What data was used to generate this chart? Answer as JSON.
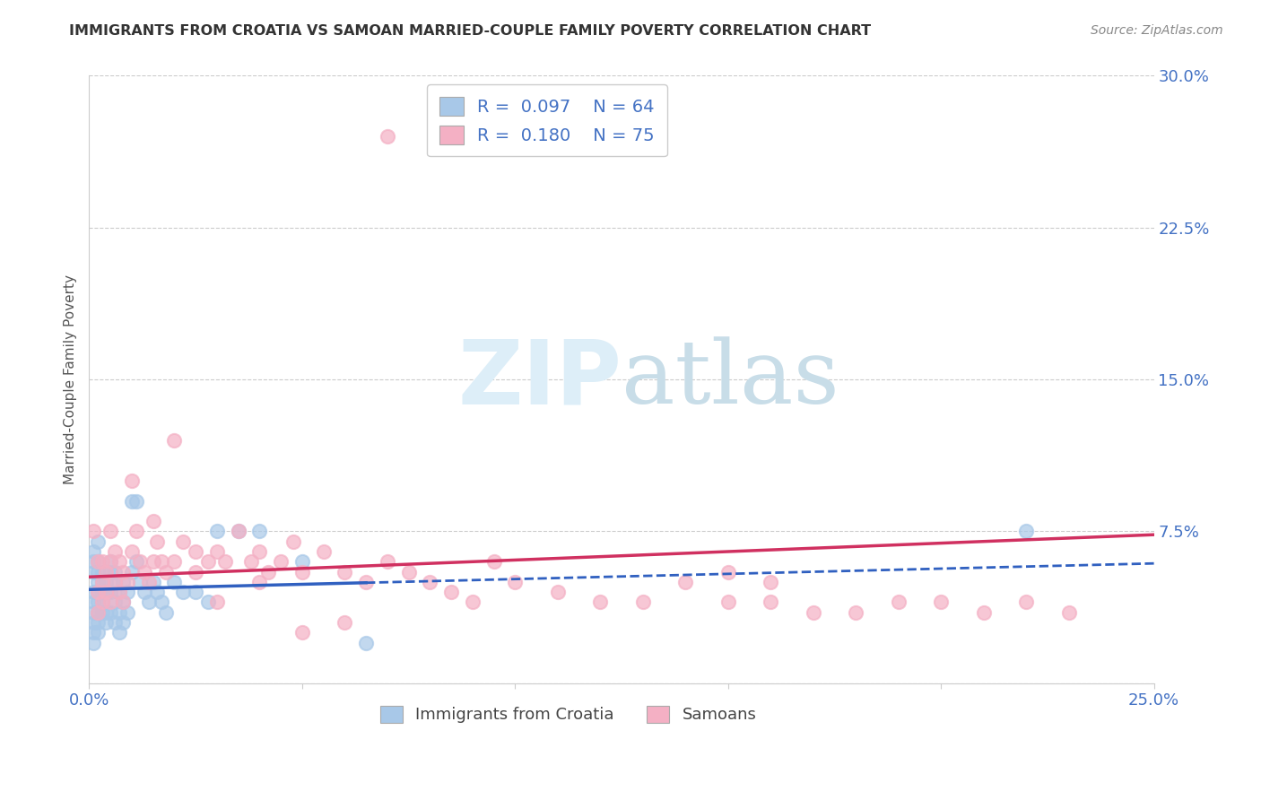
{
  "title": "IMMIGRANTS FROM CROATIA VS SAMOAN MARRIED-COUPLE FAMILY POVERTY CORRELATION CHART",
  "source": "Source: ZipAtlas.com",
  "ylabel": "Married-Couple Family Poverty",
  "xlim": [
    0.0,
    0.25
  ],
  "ylim": [
    0.0,
    0.3
  ],
  "ytick_vals": [
    0.0,
    0.075,
    0.15,
    0.225,
    0.3
  ],
  "ytick_labels_right": [
    "",
    "7.5%",
    "15.0%",
    "22.5%",
    "30.0%"
  ],
  "xtick_vals": [
    0.0,
    0.05,
    0.1,
    0.15,
    0.2,
    0.25
  ],
  "xtick_labels": [
    "0.0%",
    "",
    "",
    "",
    "",
    "25.0%"
  ],
  "croatia_R": 0.097,
  "croatia_N": 64,
  "samoan_R": 0.18,
  "samoan_N": 75,
  "croatia_scatter_color": "#a8c8e8",
  "croatia_line_color": "#3060c0",
  "samoan_scatter_color": "#f4b0c4",
  "samoan_line_color": "#d03060",
  "watermark_color": "#ddeef8",
  "bg_color": "#ffffff",
  "grid_color": "#cccccc",
  "right_axis_color": "#4472c4",
  "bottom_axis_color": "#4472c4",
  "title_color": "#333333",
  "source_color": "#888888",
  "legend_text_color": "#4472c4",
  "croatia_x": [
    0.001,
    0.001,
    0.001,
    0.001,
    0.001,
    0.001,
    0.001,
    0.001,
    0.001,
    0.002,
    0.002,
    0.002,
    0.002,
    0.002,
    0.002,
    0.002,
    0.002,
    0.002,
    0.003,
    0.003,
    0.003,
    0.003,
    0.003,
    0.004,
    0.004,
    0.004,
    0.004,
    0.005,
    0.005,
    0.005,
    0.005,
    0.006,
    0.006,
    0.006,
    0.006,
    0.007,
    0.007,
    0.007,
    0.008,
    0.008,
    0.008,
    0.009,
    0.009,
    0.01,
    0.01,
    0.011,
    0.011,
    0.012,
    0.013,
    0.014,
    0.015,
    0.016,
    0.017,
    0.018,
    0.02,
    0.022,
    0.025,
    0.028,
    0.03,
    0.035,
    0.04,
    0.05,
    0.065,
    0.22
  ],
  "croatia_y": [
    0.035,
    0.04,
    0.055,
    0.06,
    0.065,
    0.045,
    0.03,
    0.025,
    0.02,
    0.05,
    0.055,
    0.045,
    0.035,
    0.03,
    0.04,
    0.025,
    0.06,
    0.07,
    0.05,
    0.045,
    0.035,
    0.04,
    0.055,
    0.05,
    0.045,
    0.035,
    0.03,
    0.06,
    0.055,
    0.045,
    0.035,
    0.055,
    0.05,
    0.04,
    0.03,
    0.045,
    0.035,
    0.025,
    0.05,
    0.04,
    0.03,
    0.045,
    0.035,
    0.09,
    0.055,
    0.09,
    0.06,
    0.05,
    0.045,
    0.04,
    0.05,
    0.045,
    0.04,
    0.035,
    0.05,
    0.045,
    0.045,
    0.04,
    0.075,
    0.075,
    0.075,
    0.06,
    0.02,
    0.075
  ],
  "samoan_x": [
    0.001,
    0.002,
    0.002,
    0.002,
    0.003,
    0.003,
    0.003,
    0.004,
    0.004,
    0.005,
    0.005,
    0.005,
    0.006,
    0.006,
    0.007,
    0.007,
    0.008,
    0.008,
    0.009,
    0.01,
    0.01,
    0.011,
    0.012,
    0.013,
    0.014,
    0.015,
    0.015,
    0.016,
    0.017,
    0.018,
    0.02,
    0.02,
    0.022,
    0.025,
    0.025,
    0.028,
    0.03,
    0.032,
    0.035,
    0.038,
    0.04,
    0.042,
    0.045,
    0.048,
    0.05,
    0.055,
    0.06,
    0.065,
    0.07,
    0.075,
    0.08,
    0.085,
    0.09,
    0.095,
    0.1,
    0.11,
    0.12,
    0.13,
    0.14,
    0.15,
    0.16,
    0.17,
    0.18,
    0.19,
    0.2,
    0.21,
    0.22,
    0.23,
    0.15,
    0.16,
    0.03,
    0.04,
    0.05,
    0.06,
    0.07
  ],
  "samoan_y": [
    0.075,
    0.06,
    0.045,
    0.035,
    0.06,
    0.05,
    0.04,
    0.055,
    0.045,
    0.075,
    0.06,
    0.04,
    0.065,
    0.05,
    0.06,
    0.045,
    0.055,
    0.04,
    0.05,
    0.1,
    0.065,
    0.075,
    0.06,
    0.055,
    0.05,
    0.08,
    0.06,
    0.07,
    0.06,
    0.055,
    0.12,
    0.06,
    0.07,
    0.065,
    0.055,
    0.06,
    0.065,
    0.06,
    0.075,
    0.06,
    0.065,
    0.055,
    0.06,
    0.07,
    0.055,
    0.065,
    0.055,
    0.05,
    0.06,
    0.055,
    0.05,
    0.045,
    0.04,
    0.06,
    0.05,
    0.045,
    0.04,
    0.04,
    0.05,
    0.04,
    0.04,
    0.035,
    0.035,
    0.04,
    0.04,
    0.035,
    0.04,
    0.035,
    0.055,
    0.05,
    0.04,
    0.05,
    0.025,
    0.03,
    0.27
  ]
}
